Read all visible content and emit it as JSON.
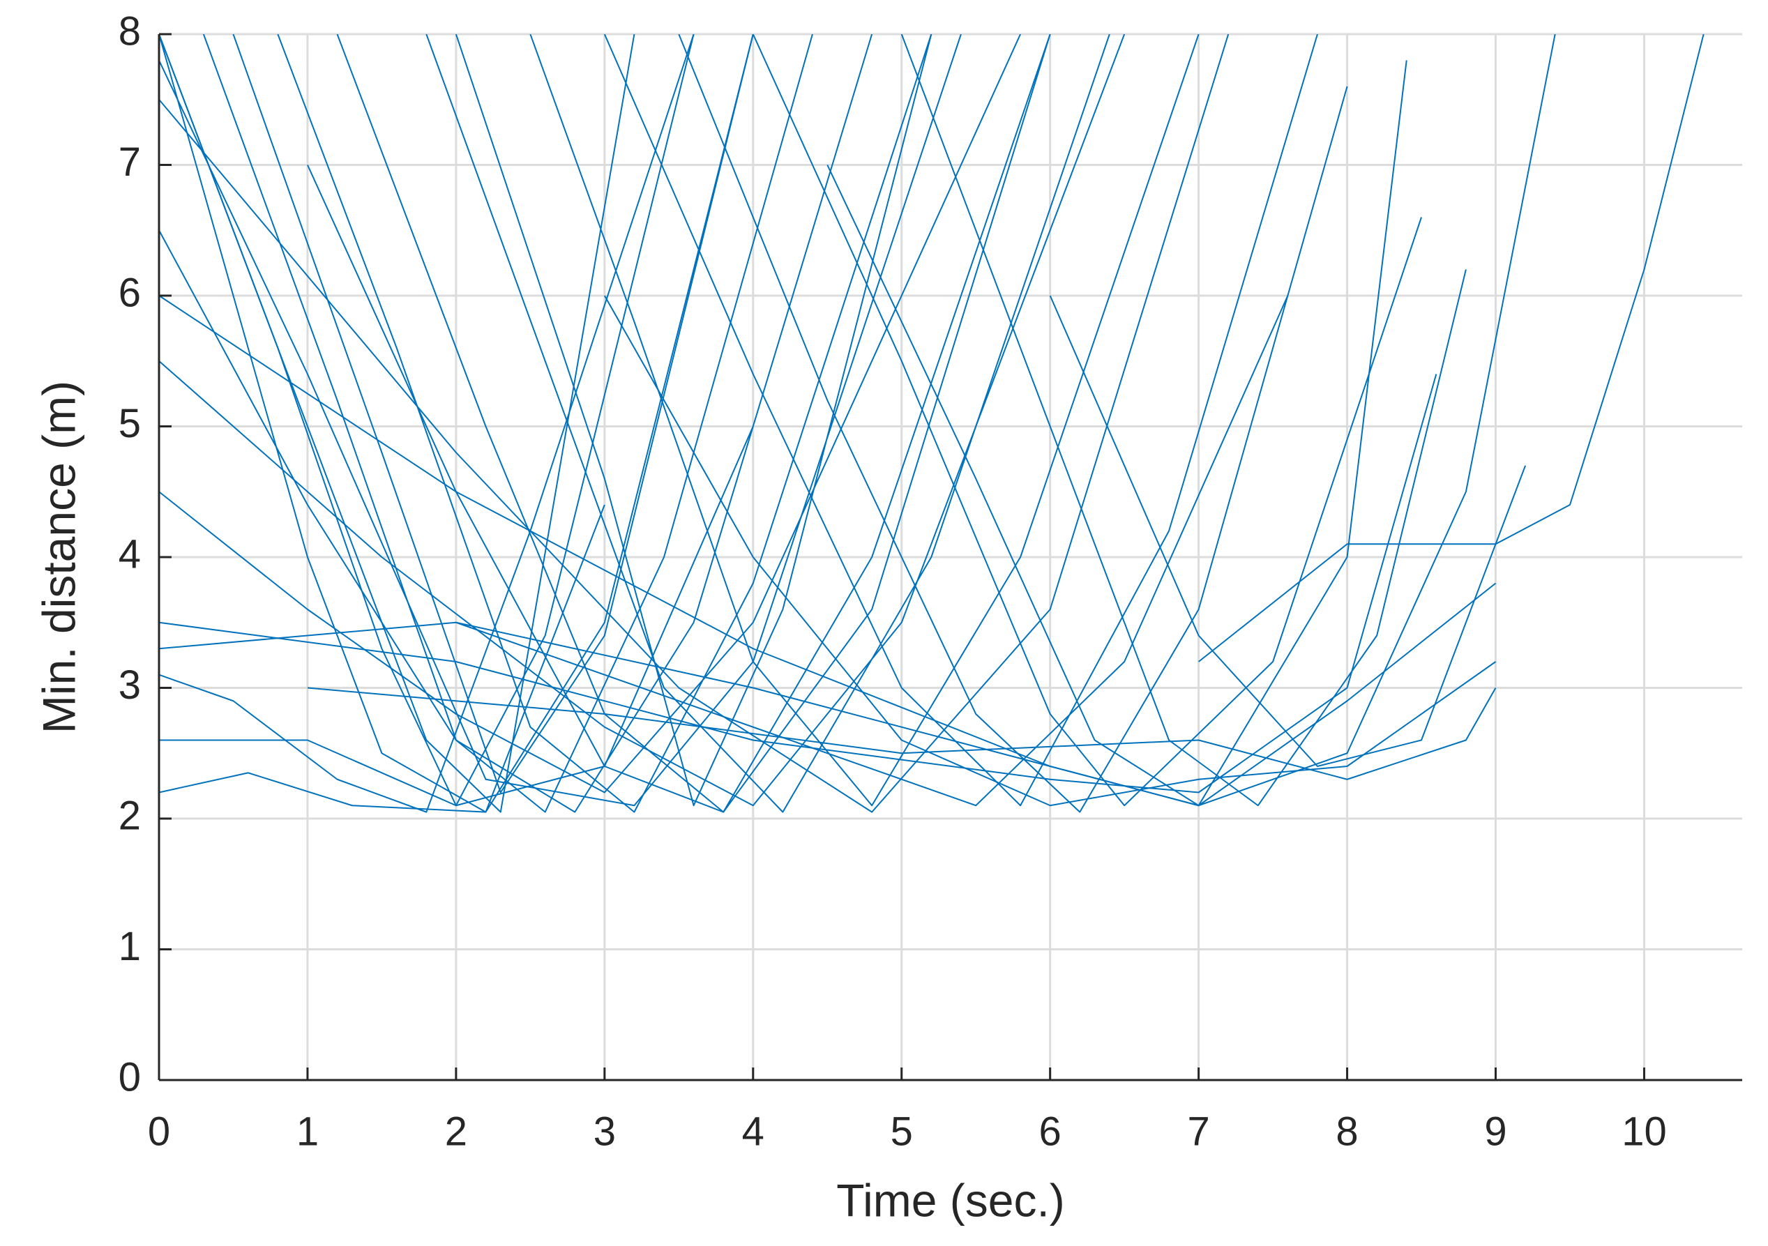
{
  "chart_data": {
    "type": "line",
    "xlabel": "Time (sec.)",
    "ylabel": "Min. distance (m)",
    "xlim": [
      0,
      10.66
    ],
    "ylim": [
      0,
      8
    ],
    "xticks": [
      0,
      1,
      2,
      3,
      4,
      5,
      6,
      7,
      8,
      9,
      10
    ],
    "yticks": [
      0,
      1,
      2,
      3,
      4,
      5,
      6,
      7,
      8
    ],
    "grid": true,
    "color": "#0072bd",
    "series": [
      {
        "x": [
          0,
          1,
          1.8,
          2.3,
          3.2
        ],
        "values": [
          8,
          5,
          2.6,
          2.05,
          8
        ]
      },
      {
        "x": [
          0,
          0.8,
          1.5,
          2.0,
          2.6,
          3.6
        ],
        "values": [
          8,
          5.6,
          3.3,
          2.1,
          3.4,
          8
        ]
      },
      {
        "x": [
          0.3,
          1.2,
          2.0,
          2.6,
          3.4,
          4.4
        ],
        "values": [
          8,
          5.2,
          2.6,
          2.05,
          4,
          8
        ]
      },
      {
        "x": [
          0,
          1,
          2,
          2.8,
          3.6,
          4.8
        ],
        "values": [
          6.5,
          4.4,
          2.6,
          2.05,
          3.5,
          8
        ]
      },
      {
        "x": [
          0,
          0.5,
          1.2,
          1.8,
          2.5,
          3.6
        ],
        "values": [
          3.1,
          2.9,
          2.3,
          2.05,
          4.2,
          8
        ]
      },
      {
        "x": [
          0,
          0.6,
          1.3,
          2.2,
          3,
          4
        ],
        "values": [
          2.2,
          2.35,
          2.1,
          2.05,
          3.5,
          8
        ]
      },
      {
        "x": [
          0.8,
          1.6,
          2.5,
          3.2,
          4,
          5.2
        ],
        "values": [
          8,
          5.6,
          2.7,
          2.05,
          3.8,
          8
        ]
      },
      {
        "x": [
          1.2,
          2.2,
          3,
          3.8,
          4.8,
          6
        ],
        "values": [
          8,
          5,
          2.8,
          2.05,
          4,
          8
        ]
      },
      {
        "x": [
          0,
          1,
          2,
          3,
          4,
          5,
          5.8
        ],
        "values": [
          4.5,
          3.6,
          2.8,
          2.2,
          3.5,
          6,
          8
        ]
      },
      {
        "x": [
          1.8,
          2.6,
          3.4,
          4.2,
          5.2,
          6.4
        ],
        "values": [
          8,
          5.5,
          3,
          2.05,
          4,
          8
        ]
      },
      {
        "x": [
          0,
          1.5,
          3,
          4,
          5,
          6.5
        ],
        "values": [
          5.5,
          4,
          2.7,
          2.1,
          3.5,
          8
        ]
      },
      {
        "x": [
          2.5,
          3.2,
          4,
          4.8,
          5.8,
          7
        ],
        "values": [
          8,
          5.8,
          3.2,
          2.1,
          4,
          8
        ]
      },
      {
        "x": [
          0,
          2,
          3.5,
          4.8,
          6,
          7.2
        ],
        "values": [
          7.5,
          4.8,
          3,
          2.05,
          3.6,
          8
        ]
      },
      {
        "x": [
          3,
          4,
          5,
          5.8,
          6.8,
          7.8
        ],
        "values": [
          8,
          5.4,
          3,
          2.1,
          4.2,
          8
        ]
      },
      {
        "x": [
          0,
          2,
          4,
          5.5,
          6.5,
          7.6
        ],
        "values": [
          3.3,
          3.5,
          2.7,
          2.1,
          3.2,
          6
        ]
      },
      {
        "x": [
          3.5,
          4.5,
          5.5,
          6.2,
          7,
          8
        ],
        "values": [
          8,
          5.2,
          2.8,
          2.05,
          3.6,
          7.6
        ]
      },
      {
        "x": [
          0,
          2,
          4,
          6,
          7,
          8,
          8.4
        ],
        "values": [
          6,
          4.5,
          3.3,
          2.4,
          2.1,
          4,
          7.8
        ]
      },
      {
        "x": [
          4,
          5,
          6,
          6.5,
          7.5,
          8.5
        ],
        "values": [
          8,
          5.5,
          2.8,
          2.1,
          3.2,
          6.6
        ]
      },
      {
        "x": [
          0,
          2,
          4,
          6,
          7,
          8,
          8.6
        ],
        "values": [
          3.5,
          3.2,
          2.6,
          2.3,
          2.2,
          3,
          5.4
        ]
      },
      {
        "x": [
          5,
          6,
          6.8,
          7.4,
          8.2,
          8.8
        ],
        "values": [
          8,
          5,
          2.6,
          2.1,
          3.4,
          6.2
        ]
      },
      {
        "x": [
          1,
          3,
          5,
          7,
          8,
          8.8,
          9
        ],
        "values": [
          3,
          2.8,
          2.5,
          2.6,
          2.3,
          2.6,
          3
        ]
      },
      {
        "x": [
          6,
          7,
          7.8,
          8.5,
          9.2
        ],
        "values": [
          6,
          3.4,
          2.4,
          2.6,
          4.7
        ]
      },
      {
        "x": [
          7,
          8,
          8.6,
          9,
          9.5,
          10,
          10.4
        ],
        "values": [
          3.2,
          4.1,
          4.1,
          4.1,
          4.4,
          6.2,
          8
        ]
      },
      {
        "x": [
          0.5,
          1.5,
          2.3,
          3,
          4
        ],
        "values": [
          8,
          4.8,
          2.2,
          3.4,
          8
        ]
      },
      {
        "x": [
          2,
          3,
          3.6,
          4.2,
          5.2
        ],
        "values": [
          8,
          4.6,
          2.1,
          3.6,
          8
        ]
      },
      {
        "x": [
          1,
          2,
          3,
          3.8,
          4.8,
          6
        ],
        "values": [
          7,
          4.5,
          2.4,
          2.05,
          3.6,
          8
        ]
      },
      {
        "x": [
          0,
          1,
          2.2,
          3.2,
          4,
          5.4
        ],
        "values": [
          7.8,
          5.4,
          2.3,
          2.1,
          3.2,
          8
        ]
      },
      {
        "x": [
          4.5,
          5.5,
          6.3,
          7,
          8,
          9
        ],
        "values": [
          7,
          4.6,
          2.6,
          2.1,
          2.9,
          3.8
        ]
      },
      {
        "x": [
          0,
          1,
          2,
          3,
          4
        ],
        "values": [
          2.6,
          2.6,
          2.1,
          2.4,
          5
        ]
      },
      {
        "x": [
          2,
          4,
          6,
          7,
          8,
          8.8,
          9.4
        ],
        "values": [
          3.5,
          3,
          2.4,
          2.1,
          2.5,
          4.5,
          8
        ]
      },
      {
        "x": [
          0,
          0.5,
          1,
          1.5,
          2.2,
          3
        ],
        "values": [
          8,
          6,
          4,
          2.5,
          2.05,
          4.4
        ]
      },
      {
        "x": [
          3,
          4,
          5,
          6,
          7,
          8,
          9
        ],
        "values": [
          6,
          4,
          2.6,
          2.1,
          2.3,
          2.4,
          3.2
        ]
      }
    ]
  }
}
